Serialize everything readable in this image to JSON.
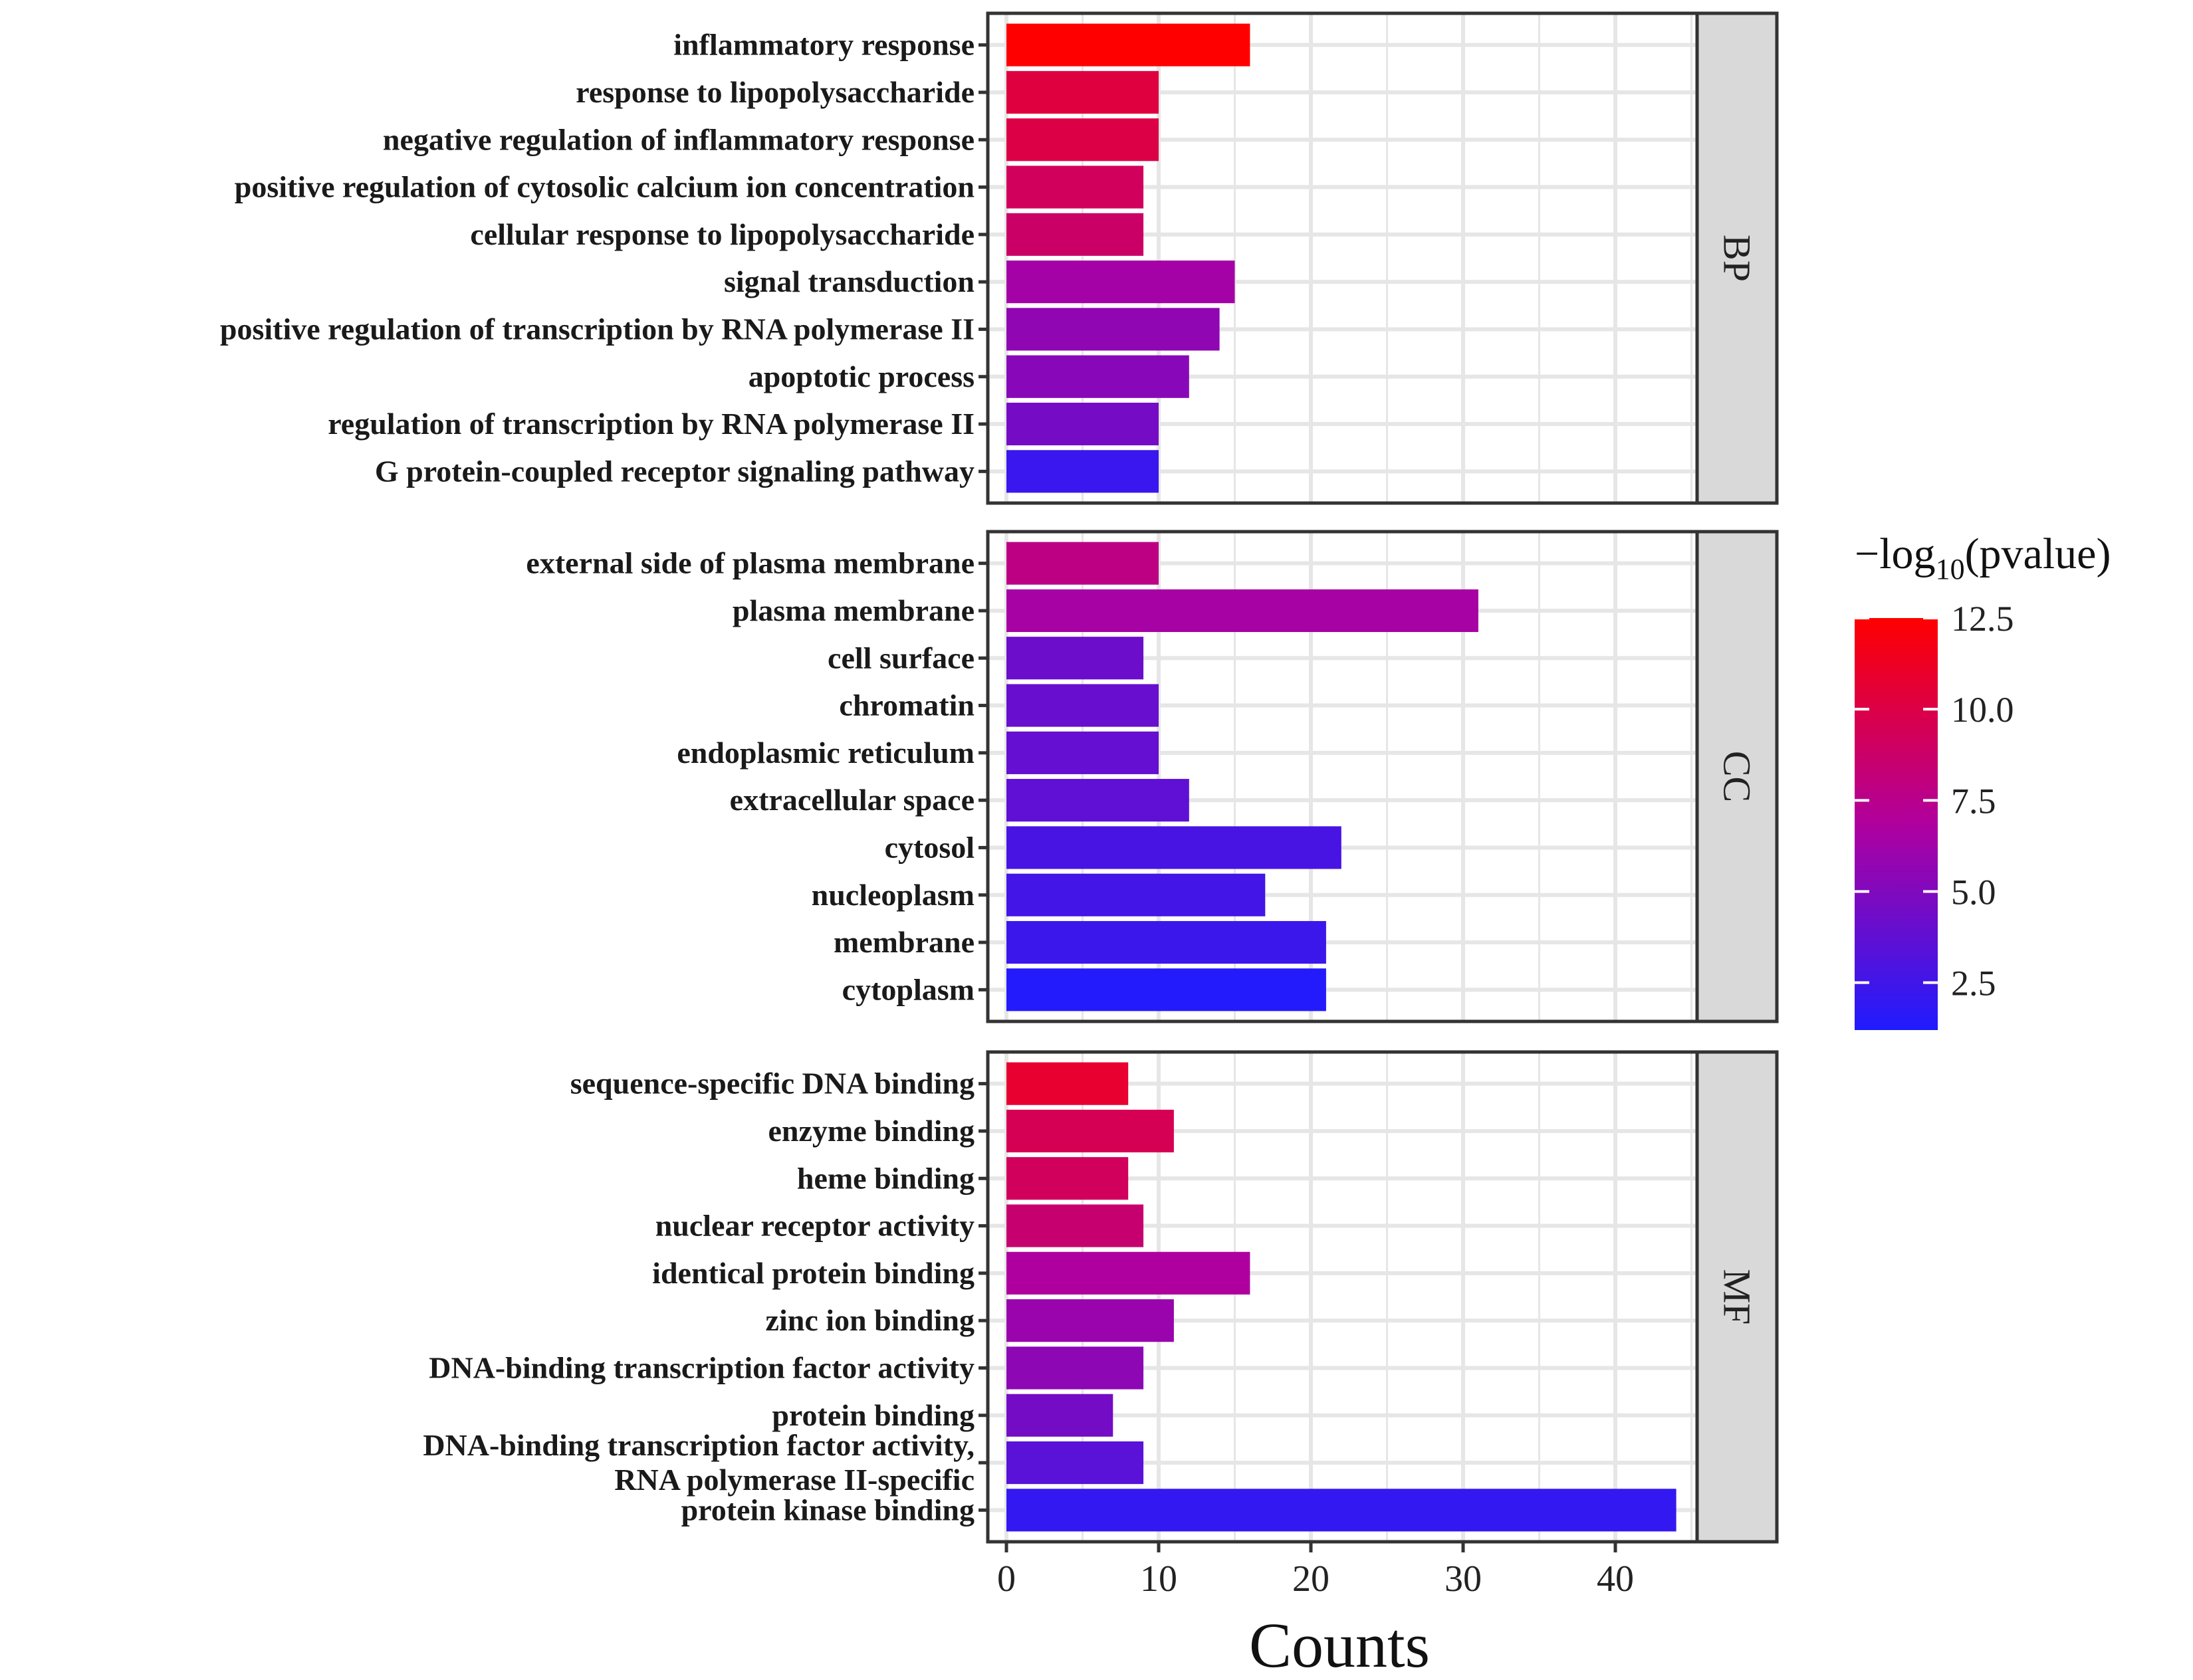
{
  "chart_data": {
    "type": "bar",
    "orientation": "horizontal",
    "xlabel": "Counts",
    "xlim": [
      0,
      46.5
    ],
    "xticks": [
      0,
      10,
      20,
      30,
      40
    ],
    "color_scale": {
      "title_prefix": "−log",
      "title_subscript": "10",
      "title_suffix": "(pvalue)",
      "min": 1.2,
      "max": 12.5,
      "ticks": [
        2.5,
        5.0,
        7.5,
        10.0,
        12.5
      ],
      "tick_labels": [
        "2.5",
        "5.0",
        "7.5",
        "10.0",
        "12.5"
      ],
      "low_color": "#1f1cff",
      "mid_color": "#b0009e",
      "high_color": "#ff0000"
    },
    "facets": [
      {
        "name": "BP",
        "categories": [
          {
            "lines": [
              "inflammatory response"
            ],
            "count": 16,
            "neglog10p": 12.5
          },
          {
            "lines": [
              "response to lipopolysaccharide"
            ],
            "count": 10,
            "neglog10p": 10.2
          },
          {
            "lines": [
              "negative regulation of inflammatory response"
            ],
            "count": 10,
            "neglog10p": 10.0
          },
          {
            "lines": [
              "positive regulation of cytosolic calcium ion concentration"
            ],
            "count": 9,
            "neglog10p": 9.2
          },
          {
            "lines": [
              "cellular response to lipopolysaccharide"
            ],
            "count": 9,
            "neglog10p": 8.8
          },
          {
            "lines": [
              "signal transduction"
            ],
            "count": 15,
            "neglog10p": 6.4
          },
          {
            "lines": [
              "positive regulation of transcription by RNA polymerase II"
            ],
            "count": 14,
            "neglog10p": 5.6
          },
          {
            "lines": [
              "apoptotic process"
            ],
            "count": 12,
            "neglog10p": 5.3
          },
          {
            "lines": [
              "regulation of transcription by RNA polymerase II"
            ],
            "count": 10,
            "neglog10p": 4.6
          },
          {
            "lines": [
              "G protein-coupled receptor signaling pathway"
            ],
            "count": 10,
            "neglog10p": 2.2
          }
        ]
      },
      {
        "name": "CC",
        "categories": [
          {
            "lines": [
              "external side of plasma membrane"
            ],
            "count": 10,
            "neglog10p": 7.8
          },
          {
            "lines": [
              "plasma membrane"
            ],
            "count": 31,
            "neglog10p": 6.5
          },
          {
            "lines": [
              "cell surface"
            ],
            "count": 9,
            "neglog10p": 4.2
          },
          {
            "lines": [
              "chromatin"
            ],
            "count": 10,
            "neglog10p": 4.0
          },
          {
            "lines": [
              "endoplasmic reticulum"
            ],
            "count": 10,
            "neglog10p": 3.9
          },
          {
            "lines": [
              "extracellular space"
            ],
            "count": 12,
            "neglog10p": 3.7
          },
          {
            "lines": [
              "cytosol"
            ],
            "count": 22,
            "neglog10p": 2.8
          },
          {
            "lines": [
              "nucleoplasm"
            ],
            "count": 17,
            "neglog10p": 2.6
          },
          {
            "lines": [
              "membrane"
            ],
            "count": 21,
            "neglog10p": 2.3
          },
          {
            "lines": [
              "cytoplasm"
            ],
            "count": 21,
            "neglog10p": 1.4
          }
        ]
      },
      {
        "name": "MF",
        "categories": [
          {
            "lines": [
              "sequence-specific DNA binding"
            ],
            "count": 8,
            "neglog10p": 10.8
          },
          {
            "lines": [
              "enzyme binding"
            ],
            "count": 11,
            "neglog10p": 9.5
          },
          {
            "lines": [
              "heme binding"
            ],
            "count": 8,
            "neglog10p": 9.2
          },
          {
            "lines": [
              "nuclear receptor activity"
            ],
            "count": 9,
            "neglog10p": 8.5
          },
          {
            "lines": [
              "identical protein binding"
            ],
            "count": 16,
            "neglog10p": 6.8
          },
          {
            "lines": [
              "zinc ion binding"
            ],
            "count": 11,
            "neglog10p": 6.0
          },
          {
            "lines": [
              "DNA-binding transcription factor activity"
            ],
            "count": 9,
            "neglog10p": 5.5
          },
          {
            "lines": [
              "protein binding"
            ],
            "count": 7,
            "neglog10p": 4.5
          },
          {
            "lines": [
              "DNA-binding transcription factor activity,",
              "RNA polymerase II-specific"
            ],
            "count": 9,
            "neglog10p": 3.5
          },
          {
            "lines": [
              "protein kinase binding"
            ],
            "count": 44,
            "neglog10p": 2.0
          }
        ]
      }
    ]
  }
}
